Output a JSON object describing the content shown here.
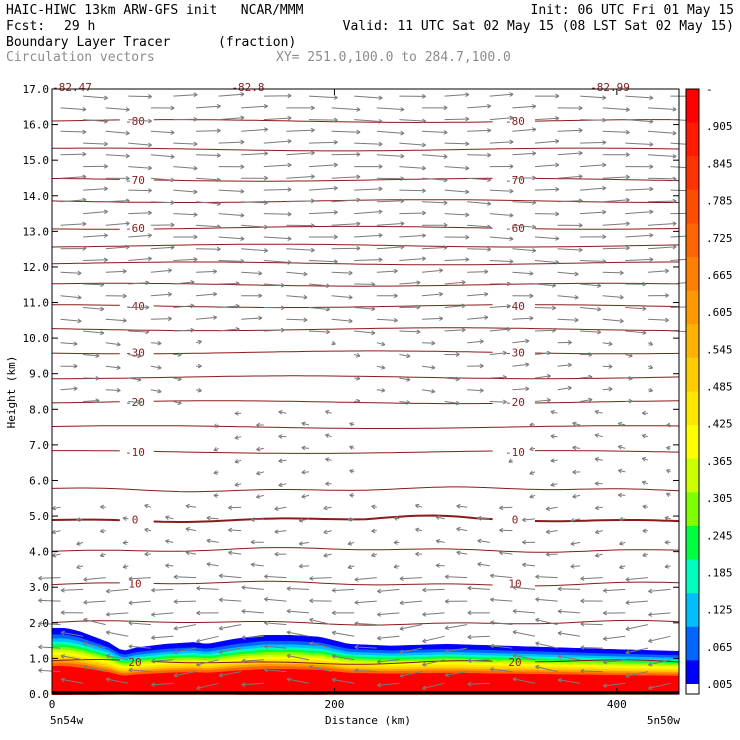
{
  "header": {
    "title": "HAIC-HIWC 13km ARW-GFS init   NCAR/MMM",
    "init": "Init: 06 UTC Fri 01 May 15",
    "fcst_label": "Fcst:",
    "fcst_value": "29 h",
    "valid": "Valid: 11 UTC Sat 02 May 15 (08 LST Sat 02 May 15)",
    "field": "Boundary Layer Tracer",
    "field_units": "(fraction)",
    "overlay": "Circulation vectors",
    "xy": "XY= 251.0,100.0 to 284.7,100.0"
  },
  "chart_data": {
    "type": "heatmap",
    "title": "Boundary Layer Tracer",
    "units": "(fraction)",
    "xlabel": "Distance (km)",
    "ylabel": "Height (km)",
    "xlim": [
      0,
      444
    ],
    "ylim": [
      0,
      17
    ],
    "x_ticks": [
      0,
      200,
      400
    ],
    "y_ticks": [
      "0.0",
      "1.0",
      "2.0",
      "3.0",
      "4.0",
      "5.0",
      "6.0",
      "7.0",
      "8.0",
      "9.0",
      "10.0",
      "11.0",
      "12.0",
      "13.0",
      "14.0",
      "15.0",
      "16.0",
      "17.0"
    ],
    "x_endpoints": [
      "5n54w",
      "5n50w"
    ],
    "colorbar": {
      "labels": [
        "-",
        ".905",
        ".845",
        ".785",
        ".725",
        ".665",
        ".605",
        ".545",
        ".485",
        ".425",
        ".365",
        ".305",
        ".245",
        ".185",
        ".125",
        ".065",
        ".005"
      ],
      "colors": [
        "#ff0000",
        "#ff1a00",
        "#ff3300",
        "#ff4d00",
        "#ff6600",
        "#ff8000",
        "#ff9900",
        "#ffb300",
        "#ffcc00",
        "#ffe600",
        "#ffff00",
        "#ccff00",
        "#80ff00",
        "#00ff40",
        "#00ffbf",
        "#00bfff",
        "#0066ff",
        "#0000ff"
      ]
    },
    "tracer_top_km": [
      [
        0,
        1.85
      ],
      [
        10,
        1.85
      ],
      [
        20,
        1.75
      ],
      [
        30,
        1.6
      ],
      [
        40,
        1.45
      ],
      [
        50,
        1.2
      ],
      [
        60,
        1.3
      ],
      [
        80,
        1.4
      ],
      [
        100,
        1.45
      ],
      [
        110,
        1.4
      ],
      [
        130,
        1.55
      ],
      [
        150,
        1.65
      ],
      [
        170,
        1.65
      ],
      [
        190,
        1.6
      ],
      [
        210,
        1.4
      ],
      [
        240,
        1.35
      ],
      [
        280,
        1.4
      ],
      [
        320,
        1.35
      ],
      [
        360,
        1.3
      ],
      [
        400,
        1.25
      ],
      [
        444,
        1.2
      ]
    ],
    "contours": {
      "units": "°C",
      "levels": [
        {
          "value": -80,
          "label": "-80",
          "y": 16.1,
          "labeled": true
        },
        {
          "value": -75,
          "y": 15.3
        },
        {
          "value": -70,
          "label": "-70",
          "y": 14.45,
          "labeled": true
        },
        {
          "value": -65,
          "y": 13.85
        },
        {
          "value": -60,
          "label": "-60",
          "y": 13.1,
          "labeled": true
        },
        {
          "value": -55,
          "y": 12.6
        },
        {
          "value": -50,
          "y": 12.1
        },
        {
          "value": -45,
          "y": 11.5
        },
        {
          "value": -40,
          "label": "-40",
          "y": 10.9,
          "labeled": true
        },
        {
          "value": -35,
          "y": 10.25
        },
        {
          "value": -30,
          "label": "-30",
          "y": 9.6,
          "labeled": true
        },
        {
          "value": -25,
          "y": 8.9
        },
        {
          "value": -20,
          "label": "-20",
          "y": 8.2,
          "labeled": true
        },
        {
          "value": -15,
          "y": 7.5
        },
        {
          "value": -10,
          "label": "-10",
          "y": 6.8,
          "labeled": true
        },
        {
          "value": -5,
          "y": 5.75
        },
        {
          "value": 0,
          "label": "0",
          "y": 4.9,
          "labeled": true
        },
        {
          "value": 5,
          "y": 4.05
        },
        {
          "value": 10,
          "label": "10",
          "y": 3.1,
          "labeled": true
        },
        {
          "value": 15,
          "y": 2.0
        },
        {
          "value": 20,
          "label": "20",
          "y": 0.9,
          "labeled": true
        }
      ],
      "top_labels": [
        "-82.47",
        "-82.8",
        "-82.99"
      ]
    }
  }
}
